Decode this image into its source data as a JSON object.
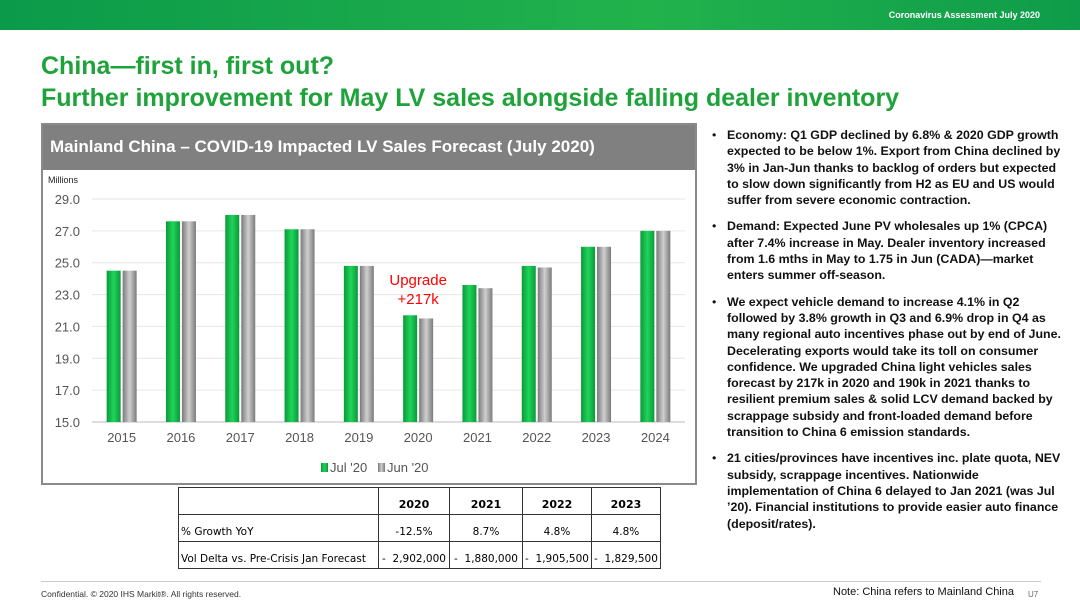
{
  "header": {
    "banner": "Coronavirus Assessment July 2020",
    "title1": "China—first in, first out?",
    "title2": "Further improvement for May LV sales alongside falling dealer inventory"
  },
  "chart_data": {
    "type": "bar",
    "title": "Mainland China – COVID-19 Impacted LV Sales Forecast (July 2020)",
    "ylabel": "Millions",
    "ylim": [
      15,
      29
    ],
    "yticks": [
      "15.0",
      "17.0",
      "19.0",
      "21.0",
      "23.0",
      "25.0",
      "27.0",
      "29.0"
    ],
    "categories": [
      "2015",
      "2016",
      "2017",
      "2018",
      "2019",
      "2020",
      "2021",
      "2022",
      "2023",
      "2024"
    ],
    "series": [
      {
        "name": "Jul '20",
        "color": "#16c04a",
        "values": [
          24.5,
          27.6,
          28.0,
          27.1,
          24.8,
          21.7,
          23.6,
          24.8,
          26.0,
          27.0
        ]
      },
      {
        "name": "Jun '20",
        "color": "#a8a8a8",
        "values": [
          24.5,
          27.6,
          28.0,
          27.1,
          24.8,
          21.5,
          23.4,
          24.7,
          26.0,
          27.0
        ]
      }
    ],
    "annotation": {
      "line1": "Upgrade",
      "line2": "+217k",
      "color": "#ff0000"
    },
    "grid": true,
    "legend": "bottom"
  },
  "table": {
    "headers": [
      "",
      "2020",
      "2021",
      "2022",
      "2023"
    ],
    "rows": [
      [
        "% Growth YoY",
        "-12.5%",
        "8.7%",
        "4.8%",
        "4.8%"
      ],
      [
        "Vol Delta vs. Pre-Crisis Jan Forecast",
        "-  2,902,000",
        "-  1,880,000",
        "-  1,905,500",
        "-  1,829,500"
      ]
    ]
  },
  "bullets": [
    "Economy: Q1 GDP declined by 6.8% & 2020 GDP growth expected to be below 1%. Export from China declined by 3% in Jan-Jun thanks to backlog of orders but expected to slow down significantly from H2 as EU and US would suffer from severe economic contraction.",
    "Demand: Expected June PV wholesales up 1% (CPCA) after 7.4% increase in May. Dealer inventory increased from 1.6 mths in May to 1.75 in Jun (CADA)—market enters summer off-season.",
    "We expect vehicle demand to increase 4.1% in Q2 followed by 3.8% growth in Q3 and 6.9%  drop in Q4 as many regional auto incentives phase out by end of June. Decelerating exports would take its toll on consumer confidence. We upgraded China light vehicles sales forecast by 217k in 2020 and 190k in 2021 thanks to resilient premium sales & solid LCV demand backed by scrappage subsidy and front-loaded demand before transition to China 6 emission standards.",
    "21 cities/provinces have incentives inc. plate quota, NEV subsidy, scrappage incentives. Nationwide implementation of China 6 delayed to Jan 2021 (was Jul ’20). Financial institutions to provide easier auto finance (deposit/rates)."
  ],
  "footer": {
    "confidential": "Confidential. © 2020 IHS Markit®. All rights reserved.",
    "note": "Note: China refers to Mainland China",
    "page": "U7"
  }
}
